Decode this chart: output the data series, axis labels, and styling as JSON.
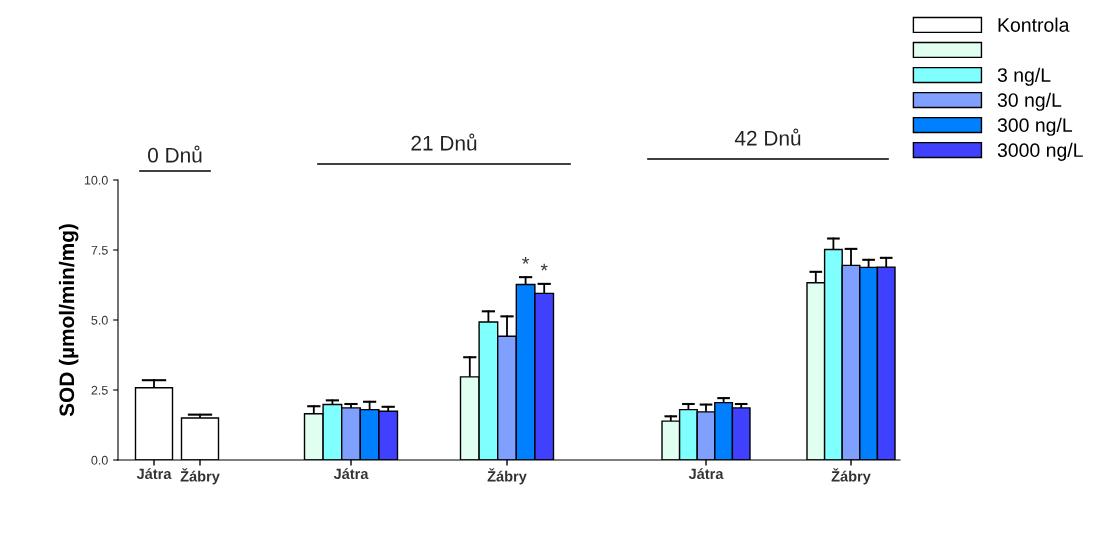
{
  "chart_data": {
    "type": "bar",
    "ylabel": "SOD (µmol/min/mg)",
    "categories": [
      "Játra",
      "Žábry",
      "Játra",
      "Žábry",
      "Játra",
      "Žábry"
    ],
    "series": [
      {
        "name": "Kontrola",
        "color": "#ffffff",
        "values": [
          2.58,
          1.5,
          null,
          null,
          null,
          null
        ],
        "errors": [
          [
            2.58,
            2.85
          ],
          [
            1.5,
            1.62
          ],
          null,
          null,
          null,
          null
        ]
      },
      {
        "color": "#e0fff0",
        "values": [
          null,
          null,
          1.65,
          2.97,
          1.39,
          6.33
        ],
        "errors": [
          null,
          null,
          [
            1.65,
            1.92
          ],
          [
            2.97,
            3.67
          ],
          [
            1.39,
            1.56
          ],
          [
            6.33,
            6.72
          ]
        ]
      },
      {
        "name": "3 ng/L",
        "color": "#80ffff",
        "values": [
          null,
          null,
          1.98,
          4.93,
          1.8,
          7.52
        ],
        "errors": [
          null,
          null,
          [
            1.98,
            2.13
          ],
          [
            4.93,
            5.31
          ],
          [
            1.8,
            2.0
          ],
          [
            7.52,
            7.91
          ]
        ]
      },
      {
        "name": "30 ng/L",
        "color": "#80a0ff",
        "values": [
          null,
          null,
          1.86,
          4.42,
          1.72,
          6.95
        ],
        "errors": [
          null,
          null,
          [
            1.86,
            2.0
          ],
          [
            4.42,
            5.13
          ],
          [
            1.72,
            1.98
          ],
          [
            6.95,
            7.54
          ]
        ]
      },
      {
        "name": "300 ng/L",
        "color": "#0080ff",
        "values": [
          null,
          null,
          1.8,
          6.27,
          2.05,
          6.88
        ],
        "errors": [
          null,
          null,
          [
            1.8,
            2.08
          ],
          [
            6.27,
            6.53
          ],
          [
            2.05,
            2.21
          ],
          [
            6.88,
            7.15
          ]
        ]
      },
      {
        "name": "3000 ng/L",
        "color": "#4040ff",
        "values": [
          null,
          null,
          1.74,
          5.95,
          1.86,
          6.89
        ],
        "errors": [
          null,
          null,
          [
            1.74,
            1.9
          ],
          [
            5.95,
            6.29
          ],
          [
            1.86,
            2.0
          ],
          [
            6.89,
            7.22
          ]
        ]
      }
    ],
    "ylim": [
      0,
      10
    ],
    "yticks": [
      {
        "value": 0,
        "label": "0.0"
      },
      {
        "value": 2.5,
        "label": "2.5"
      },
      {
        "value": 5,
        "label": "5.0"
      },
      {
        "value": 7.5,
        "label": "7.5"
      },
      {
        "value": 10,
        "label": "10.0"
      }
    ],
    "annotations": [
      "0 Dnů",
      "21 Dnů",
      "42 Dnů",
      "*",
      "*"
    ],
    "legend": "top right",
    "grid": false
  }
}
